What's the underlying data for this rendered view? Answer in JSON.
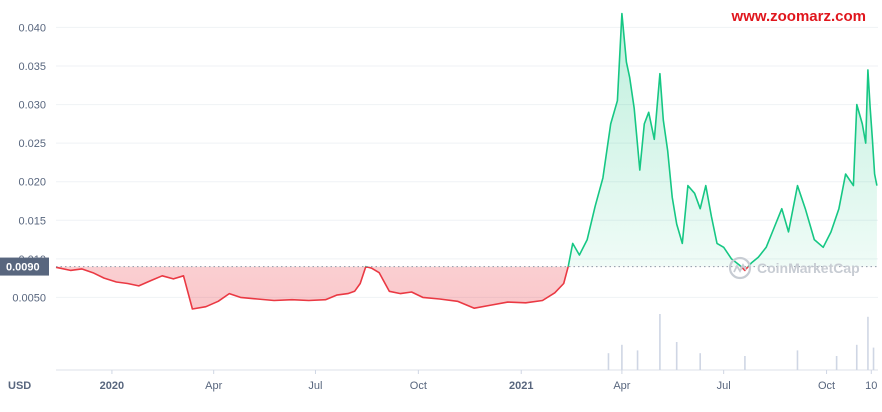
{
  "watermark": "www.zoomarz.com",
  "brand": "CoinMarketCap",
  "colors": {
    "up": "#16c784",
    "down": "#ea3943",
    "reference": "#58667e",
    "volume": "#cfd6e4",
    "watermark": "#e0161d"
  },
  "chart_data": {
    "type": "line",
    "currency_label": "USD",
    "reference_value": 0.009,
    "reference_label": "0.0090",
    "ylim": [
      0,
      0.042
    ],
    "y_ticks": [
      "0.0050",
      "0.010",
      "0.015",
      "0.020",
      "0.025",
      "0.030",
      "0.035",
      "0.040"
    ],
    "y_tick_values": [
      0.005,
      0.01,
      0.015,
      0.02,
      0.025,
      0.03,
      0.035,
      0.04
    ],
    "x_ticks": [
      "2020",
      "Apr",
      "Jul",
      "Oct",
      "2021",
      "Apr",
      "Jul",
      "Oct",
      "10"
    ],
    "x_tick_dates": [
      "2020-01-01",
      "2020-04-01",
      "2020-07-01",
      "2020-10-01",
      "2021-01-01",
      "2021-04-01",
      "2021-07-01",
      "2021-10-01",
      "2021-11-10"
    ],
    "xlim": [
      "2019-11-12",
      "2021-11-16"
    ],
    "grid": true,
    "series": [
      {
        "points": [
          [
            "2019-11-12",
            0.0089
          ],
          [
            "2019-11-25",
            0.0085
          ],
          [
            "2019-12-05",
            0.0087
          ],
          [
            "2019-12-15",
            0.0082
          ],
          [
            "2019-12-25",
            0.0075
          ],
          [
            "2020-01-05",
            0.007
          ],
          [
            "2020-01-15",
            0.0068
          ],
          [
            "2020-01-25",
            0.0065
          ],
          [
            "2020-02-05",
            0.0072
          ],
          [
            "2020-02-15",
            0.0078
          ],
          [
            "2020-02-25",
            0.0074
          ],
          [
            "2020-03-05",
            0.0078
          ],
          [
            "2020-03-13",
            0.0035
          ],
          [
            "2020-03-25",
            0.0038
          ],
          [
            "2020-04-05",
            0.0045
          ],
          [
            "2020-04-15",
            0.0055
          ],
          [
            "2020-04-25",
            0.005
          ],
          [
            "2020-05-10",
            0.0048
          ],
          [
            "2020-05-25",
            0.0046
          ],
          [
            "2020-06-10",
            0.0047
          ],
          [
            "2020-06-25",
            0.0046
          ],
          [
            "2020-07-10",
            0.0047
          ],
          [
            "2020-07-20",
            0.0053
          ],
          [
            "2020-07-30",
            0.0055
          ],
          [
            "2020-08-05",
            0.0058
          ],
          [
            "2020-08-10",
            0.0068
          ],
          [
            "2020-08-15",
            0.009
          ],
          [
            "2020-08-20",
            0.0088
          ],
          [
            "2020-08-27",
            0.0082
          ],
          [
            "2020-09-05",
            0.0058
          ],
          [
            "2020-09-15",
            0.0055
          ],
          [
            "2020-09-25",
            0.0057
          ],
          [
            "2020-10-05",
            0.005
          ],
          [
            "2020-10-20",
            0.0048
          ],
          [
            "2020-11-05",
            0.0045
          ],
          [
            "2020-11-20",
            0.0036
          ],
          [
            "2020-12-05",
            0.004
          ],
          [
            "2020-12-20",
            0.0044
          ],
          [
            "2021-01-05",
            0.0043
          ],
          [
            "2021-01-20",
            0.0046
          ],
          [
            "2021-01-31",
            0.0056
          ],
          [
            "2021-02-08",
            0.0068
          ],
          [
            "2021-02-12",
            0.009
          ],
          [
            "2021-02-16",
            0.012
          ],
          [
            "2021-02-22",
            0.0105
          ],
          [
            "2021-03-01",
            0.0125
          ],
          [
            "2021-03-08",
            0.0168
          ],
          [
            "2021-03-15",
            0.0205
          ],
          [
            "2021-03-22",
            0.0275
          ],
          [
            "2021-03-28",
            0.0305
          ],
          [
            "2021-04-01",
            0.0418
          ],
          [
            "2021-04-05",
            0.0355
          ],
          [
            "2021-04-08",
            0.0335
          ],
          [
            "2021-04-12",
            0.0295
          ],
          [
            "2021-04-17",
            0.0215
          ],
          [
            "2021-04-21",
            0.0275
          ],
          [
            "2021-04-25",
            0.029
          ],
          [
            "2021-04-30",
            0.0255
          ],
          [
            "2021-05-05",
            0.034
          ],
          [
            "2021-05-08",
            0.028
          ],
          [
            "2021-05-12",
            0.024
          ],
          [
            "2021-05-16",
            0.018
          ],
          [
            "2021-05-20",
            0.0145
          ],
          [
            "2021-05-25",
            0.012
          ],
          [
            "2021-05-30",
            0.0195
          ],
          [
            "2021-06-05",
            0.0185
          ],
          [
            "2021-06-10",
            0.0165
          ],
          [
            "2021-06-15",
            0.0195
          ],
          [
            "2021-06-20",
            0.0155
          ],
          [
            "2021-06-25",
            0.012
          ],
          [
            "2021-07-01",
            0.0115
          ],
          [
            "2021-07-08",
            0.01
          ],
          [
            "2021-07-15",
            0.0092
          ],
          [
            "2021-07-20",
            0.0085
          ],
          [
            "2021-07-26",
            0.0095
          ],
          [
            "2021-08-01",
            0.0102
          ],
          [
            "2021-08-08",
            0.0115
          ],
          [
            "2021-08-15",
            0.014
          ],
          [
            "2021-08-22",
            0.0165
          ],
          [
            "2021-08-28",
            0.0135
          ],
          [
            "2021-09-05",
            0.0195
          ],
          [
            "2021-09-12",
            0.0165
          ],
          [
            "2021-09-20",
            0.0125
          ],
          [
            "2021-09-28",
            0.0115
          ],
          [
            "2021-10-05",
            0.0135
          ],
          [
            "2021-10-12",
            0.0165
          ],
          [
            "2021-10-18",
            0.021
          ],
          [
            "2021-10-25",
            0.0195
          ],
          [
            "2021-10-28",
            0.03
          ],
          [
            "2021-11-02",
            0.0275
          ],
          [
            "2021-11-05",
            0.025
          ],
          [
            "2021-11-07",
            0.0345
          ],
          [
            "2021-11-09",
            0.0295
          ],
          [
            "2021-11-11",
            0.0255
          ],
          [
            "2021-11-13",
            0.021
          ],
          [
            "2021-11-15",
            0.0195
          ]
        ]
      }
    ],
    "volume": [
      [
        "2021-03-20",
        0.3
      ],
      [
        "2021-04-01",
        0.45
      ],
      [
        "2021-04-15",
        0.35
      ],
      [
        "2021-05-05",
        1.0
      ],
      [
        "2021-05-20",
        0.5
      ],
      [
        "2021-06-10",
        0.3
      ],
      [
        "2021-07-20",
        0.25
      ],
      [
        "2021-09-05",
        0.35
      ],
      [
        "2021-10-10",
        0.25
      ],
      [
        "2021-10-28",
        0.45
      ],
      [
        "2021-11-07",
        0.95
      ],
      [
        "2021-11-12",
        0.4
      ]
    ]
  }
}
